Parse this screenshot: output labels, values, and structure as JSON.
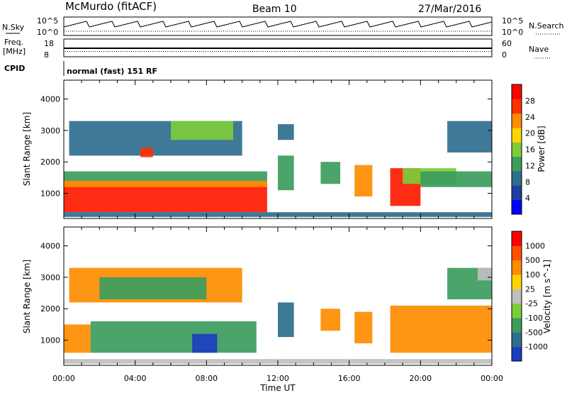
{
  "header": {
    "station": "McMurdo (fitACF)",
    "beam": "Beam 10",
    "date": "27/Mar/2016"
  },
  "side_labels": {
    "nsky": "N.Sky",
    "nsearch": "N.Search",
    "freq_line1": "Freq.",
    "freq_line2": "[MHz]",
    "nave": "Nave",
    "cpid": "CPID",
    "cpid_value": "normal (fast) 151 RF",
    "nsky_ticks": [
      "10^5",
      "10^0"
    ],
    "nsearch_ticks": [
      "10^5",
      "10^0"
    ],
    "freq_ticks": [
      "18",
      "8"
    ],
    "nave_ticks": [
      "60",
      "0"
    ]
  },
  "chart_data": [
    {
      "type": "heatmap",
      "name": "power-panel",
      "ylabel": "Slant Range [km]",
      "xlabel": "",
      "x_ticks": [
        "00:00",
        "04:00",
        "08:00",
        "12:00",
        "16:00",
        "20:00",
        "00:00"
      ],
      "y_ticks": [
        4000,
        3000,
        2000,
        1000
      ],
      "ylim": [
        200,
        4600
      ],
      "xlim_hours": [
        0,
        24
      ],
      "colorbar": {
        "label": "Power [dB]",
        "ticks": [
          "28",
          "24",
          "20",
          "16",
          "12",
          "8",
          "4"
        ],
        "colors": [
          "#0000ff",
          "#1f3f9f",
          "#2e6e8e",
          "#3c9c5c",
          "#7ccc3c",
          "#ffd400",
          "#ff8c00",
          "#ff3000",
          "#ff0000"
        ]
      },
      "regions": [
        {
          "t0": 0.0,
          "t1": 11.4,
          "r0": 400,
          "r1": 1300,
          "color": "#ff1a00"
        },
        {
          "t0": 0.0,
          "t1": 11.4,
          "r0": 1300,
          "r1": 1700,
          "color": "#3c9c5c"
        },
        {
          "t0": 0.0,
          "t1": 11.4,
          "r0": 1200,
          "r1": 1400,
          "color": "#ff8c00"
        },
        {
          "t0": 0.3,
          "t1": 10.0,
          "r0": 2200,
          "r1": 3300,
          "color": "#2e6e8e"
        },
        {
          "t0": 6.0,
          "t1": 9.5,
          "r0": 2700,
          "r1": 3300,
          "color": "#7ccc3c"
        },
        {
          "t0": 4.3,
          "t1": 5.0,
          "r0": 2150,
          "r1": 2450,
          "color": "#ff3000"
        },
        {
          "t0": 12.0,
          "t1": 12.9,
          "r0": 1100,
          "r1": 2200,
          "color": "#3c9c5c"
        },
        {
          "t0": 12.0,
          "t1": 12.9,
          "r0": 2700,
          "r1": 3200,
          "color": "#2e6e8e"
        },
        {
          "t0": 14.4,
          "t1": 15.5,
          "r0": 1300,
          "r1": 2000,
          "color": "#3c9c5c"
        },
        {
          "t0": 16.3,
          "t1": 17.3,
          "r0": 900,
          "r1": 1900,
          "color": "#ff8c00"
        },
        {
          "t0": 18.3,
          "t1": 20.0,
          "r0": 600,
          "r1": 1800,
          "color": "#ff1a00"
        },
        {
          "t0": 19.0,
          "t1": 22.0,
          "r0": 1300,
          "r1": 1800,
          "color": "#7ccc3c"
        },
        {
          "t0": 20.0,
          "t1": 24.0,
          "r0": 1200,
          "r1": 1700,
          "color": "#3c9c5c"
        },
        {
          "t0": 21.5,
          "t1": 24.0,
          "r0": 2300,
          "r1": 3300,
          "color": "#2e6e8e"
        },
        {
          "t0": 0.0,
          "t1": 24.0,
          "r0": 250,
          "r1": 400,
          "color": "#2e6e8e"
        }
      ]
    },
    {
      "type": "heatmap",
      "name": "velocity-panel",
      "ylabel": "Slant Range [km]",
      "xlabel": "Time UT",
      "x_ticks": [
        "00:00",
        "04:00",
        "08:00",
        "12:00",
        "16:00",
        "20:00",
        "00:00"
      ],
      "y_ticks": [
        4000,
        3000,
        2000,
        1000
      ],
      "ylim": [
        200,
        4600
      ],
      "xlim_hours": [
        0,
        24
      ],
      "colorbar": {
        "label": "Velocity [m s^-1]",
        "ticks": [
          "1000",
          "500",
          "100",
          "25",
          "-25",
          "-100",
          "-500",
          "-1000"
        ],
        "colors": [
          "#1a3fbf",
          "#2e6e8e",
          "#3c9c5c",
          "#7ccc3c",
          "#bfbfbf",
          "#ffd400",
          "#ff8c00",
          "#ff5000",
          "#ff0000"
        ]
      },
      "regions": [
        {
          "t0": 0.0,
          "t1": 1.5,
          "r0": 600,
          "r1": 1500,
          "color": "#ff8c00"
        },
        {
          "t0": 1.5,
          "t1": 10.8,
          "r0": 600,
          "r1": 1600,
          "color": "#3c9c5c"
        },
        {
          "t0": 7.2,
          "t1": 8.6,
          "r0": 600,
          "r1": 1200,
          "color": "#1a3fbf"
        },
        {
          "t0": 0.3,
          "t1": 10.0,
          "r0": 2200,
          "r1": 3300,
          "color": "#ff8c00"
        },
        {
          "t0": 2.0,
          "t1": 8.0,
          "r0": 2300,
          "r1": 3000,
          "color": "#3c9c5c"
        },
        {
          "t0": 12.0,
          "t1": 12.9,
          "r0": 1100,
          "r1": 2200,
          "color": "#2e6e8e"
        },
        {
          "t0": 14.4,
          "t1": 15.5,
          "r0": 1300,
          "r1": 2000,
          "color": "#ff8c00"
        },
        {
          "t0": 16.3,
          "t1": 17.3,
          "r0": 900,
          "r1": 1900,
          "color": "#ff8c00"
        },
        {
          "t0": 18.3,
          "t1": 24.0,
          "r0": 600,
          "r1": 2100,
          "color": "#ff8c00"
        },
        {
          "t0": 21.5,
          "t1": 24.0,
          "r0": 2300,
          "r1": 3300,
          "color": "#3c9c5c"
        },
        {
          "t0": 23.2,
          "t1": 24.0,
          "r0": 2900,
          "r1": 3300,
          "color": "#bfbfbf"
        },
        {
          "t0": 0.0,
          "t1": 24.0,
          "r0": 250,
          "r1": 400,
          "color": "#bfbfbf"
        }
      ]
    }
  ]
}
